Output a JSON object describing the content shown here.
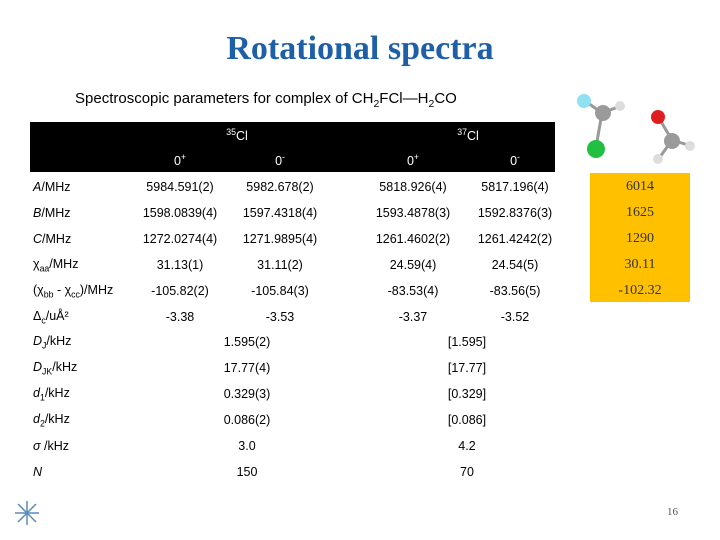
{
  "title": "Rotational spectra",
  "subtitle": [
    "Spectroscopic parameters for complex of CH",
    {
      "sub": "2"
    },
    "FCl—H",
    {
      "sub": "2"
    },
    "CO"
  ],
  "table": {
    "isotopologues": [
      [
        {
          "sup": "35"
        },
        "Cl"
      ],
      [
        {
          "sup": "37"
        },
        "Cl"
      ]
    ],
    "states": [
      [
        "0",
        {
          "sup": "+"
        }
      ],
      [
        "0",
        {
          "sup": "-"
        }
      ],
      [
        "0",
        {
          "sup": "+"
        }
      ],
      [
        "0",
        {
          "sup": "-"
        }
      ]
    ],
    "rows": [
      {
        "label": [
          {
            "i": "A"
          },
          "/MHz"
        ],
        "values": [
          "5984.591(2)",
          "5982.678(2)",
          "5818.926(4)",
          "5817.196(4)"
        ],
        "reference": "6014"
      },
      {
        "label": [
          {
            "i": "B"
          },
          "/MHz"
        ],
        "values": [
          "1598.0839(4)",
          "1597.4318(4)",
          "1593.4878(3)",
          "1592.8376(3)"
        ],
        "reference": "1625"
      },
      {
        "label": [
          {
            "i": "C"
          },
          "/MHz"
        ],
        "values": [
          "1272.0274(4)",
          "1271.9895(4)",
          "1261.4602(2)",
          "1261.4242(2)"
        ],
        "reference": "1290"
      },
      {
        "label": [
          "χ",
          {
            "sub": "aa"
          },
          "/MHz"
        ],
        "values": [
          "31.13(1)",
          "31.11(2)",
          "24.59(4)",
          "24.54(5)"
        ],
        "reference": "30.11"
      },
      {
        "label": [
          "(χ",
          {
            "sub": "bb"
          },
          " - χ",
          {
            "sub": "cc"
          },
          ")/MHz"
        ],
        "values": [
          "-105.82(2)",
          "-105.84(3)",
          "-83.53(4)",
          "-83.56(5)"
        ],
        "reference": "-102.32"
      },
      {
        "label": [
          "Δ",
          {
            "sub": "c"
          },
          "/uÅ²"
        ],
        "values": [
          "-3.38",
          "-3.53",
          "-3.37",
          "-3.52"
        ]
      }
    ],
    "shared_rows": [
      {
        "label": [
          {
            "i": "D"
          },
          {
            "sub": "J"
          },
          "/kHz"
        ],
        "values": [
          "1.595(2)",
          "[1.595]"
        ]
      },
      {
        "label": [
          {
            "i": "D"
          },
          {
            "sub": "JK"
          },
          "/kHz"
        ],
        "values": [
          "17.77(4)",
          "[17.77]"
        ]
      },
      {
        "label": [
          {
            "i": "d"
          },
          {
            "sub": "1"
          },
          "/kHz"
        ],
        "values": [
          "0.329(3)",
          "[0.329]"
        ]
      },
      {
        "label": [
          {
            "i": "d"
          },
          {
            "sub": "2"
          },
          "/kHz"
        ],
        "values": [
          "0.086(2)",
          "[0.086]"
        ]
      },
      {
        "label": [
          {
            "i": "σ"
          },
          " /kHz"
        ],
        "values": [
          "3.0",
          "4.2"
        ]
      },
      {
        "label": [
          {
            "i": "N"
          }
        ],
        "values": [
          "150",
          "70"
        ]
      }
    ]
  },
  "page_number": "16"
}
